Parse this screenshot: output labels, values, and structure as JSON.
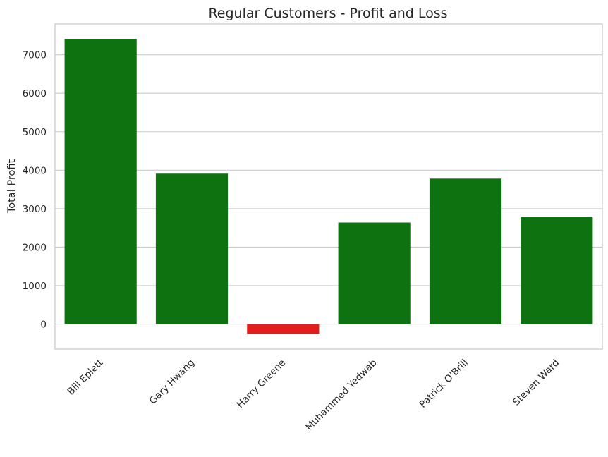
{
  "chart_data": {
    "type": "bar",
    "title": "Regular Customers - Profit and Loss",
    "xlabel": "",
    "ylabel": "Total Profit",
    "categories": [
      "Bill Eplett",
      "Gary Hwang",
      "Harry Greene",
      "Muhammed Yedwab",
      "Patrick O'Brill",
      "Steven Ward"
    ],
    "values": [
      7410,
      3910,
      -250,
      2640,
      3780,
      2780
    ],
    "bar_colors": [
      "#0f7210",
      "#0f7210",
      "#e31c1e",
      "#0f7210",
      "#0f7210",
      "#0f7210"
    ],
    "ylim": [
      -650,
      7800
    ],
    "yticks": [
      0,
      1000,
      2000,
      3000,
      4000,
      5000,
      6000,
      7000
    ],
    "grid": "y",
    "legend": "none"
  }
}
